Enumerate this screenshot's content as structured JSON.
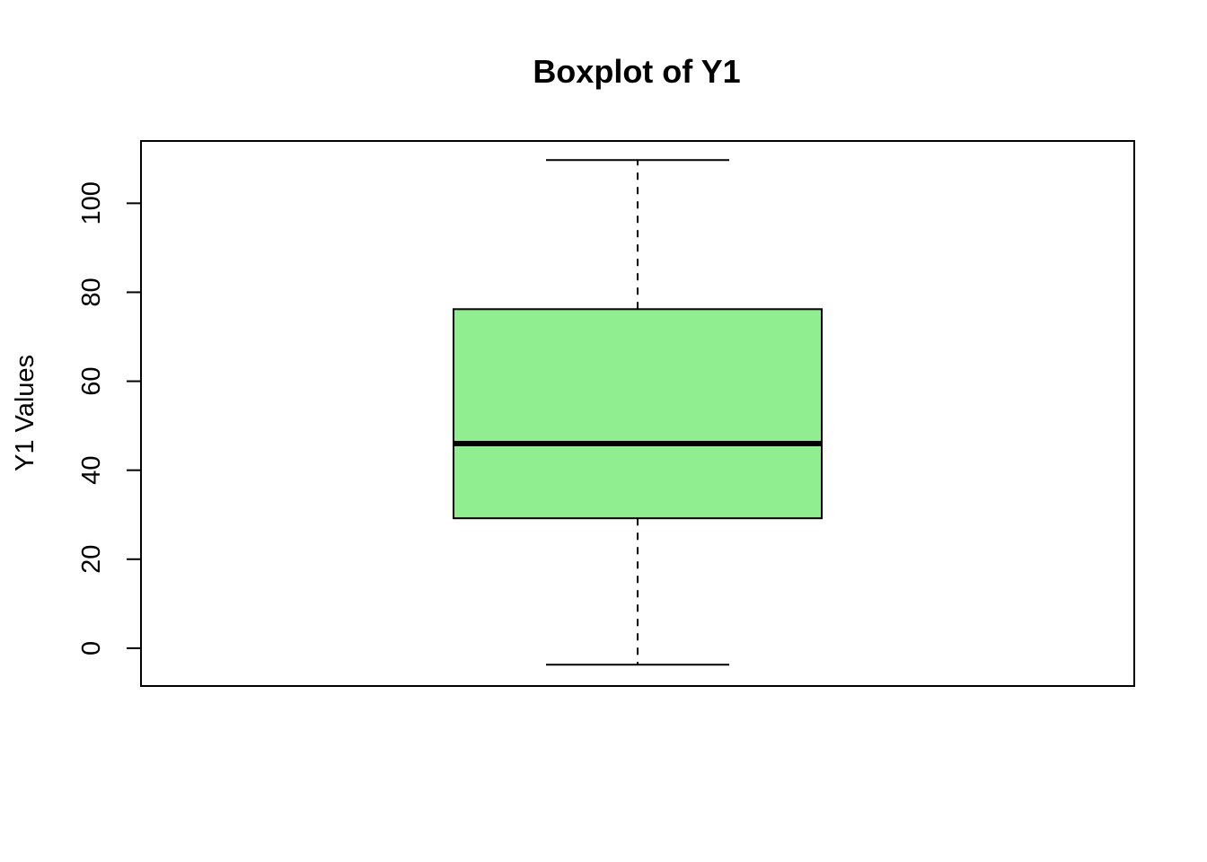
{
  "chart_data": {
    "type": "boxplot",
    "title": "Boxplot of Y1",
    "xlabel": "",
    "ylabel": "Y1 Values",
    "ylim": [
      -8.5,
      114
    ],
    "yticks": [
      0,
      20,
      40,
      60,
      80,
      100
    ],
    "ytick_labels": [
      "0",
      "20",
      "40",
      "60",
      "80",
      "100"
    ],
    "grid": false,
    "legend": "none",
    "box": {
      "whisker_low": -3.7,
      "q1": 29.2,
      "median": 46.0,
      "q3": 76.2,
      "whisker_high": 109.7
    },
    "colors": {
      "box_fill": "#90EE90",
      "stroke": "#000000",
      "background": "#ffffff"
    }
  }
}
